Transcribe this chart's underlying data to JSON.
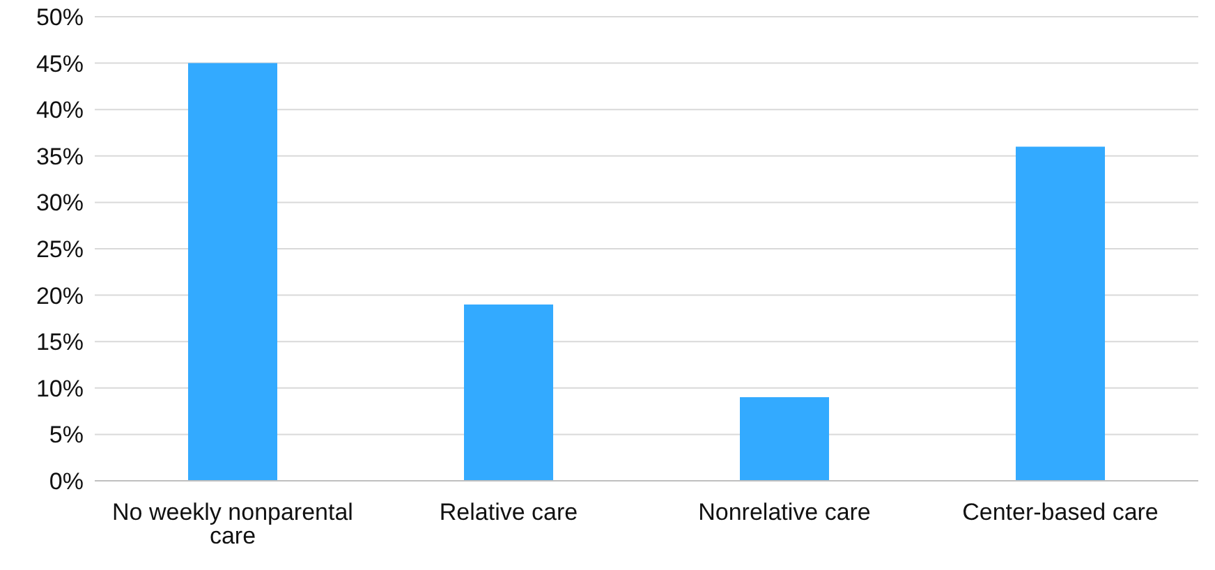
{
  "chart_data": {
    "type": "bar",
    "categories": [
      "No weekly nonparental care",
      "Relative care",
      "Nonrelative care",
      "Center-based care"
    ],
    "values": [
      45,
      19,
      9,
      36
    ],
    "color": "#33aaff",
    "ylim": [
      0,
      50
    ],
    "yticks": [
      {
        "value": 0,
        "label": "0%"
      },
      {
        "value": 5,
        "label": "5%"
      },
      {
        "value": 10,
        "label": "10%"
      },
      {
        "value": 15,
        "label": "15%"
      },
      {
        "value": 20,
        "label": "20%"
      },
      {
        "value": 25,
        "label": "25%"
      },
      {
        "value": 30,
        "label": "30%"
      },
      {
        "value": 35,
        "label": "35%"
      },
      {
        "value": 40,
        "label": "40%"
      },
      {
        "value": 45,
        "label": "45%"
      },
      {
        "value": 50,
        "label": "50%"
      }
    ],
    "grid": "y"
  }
}
